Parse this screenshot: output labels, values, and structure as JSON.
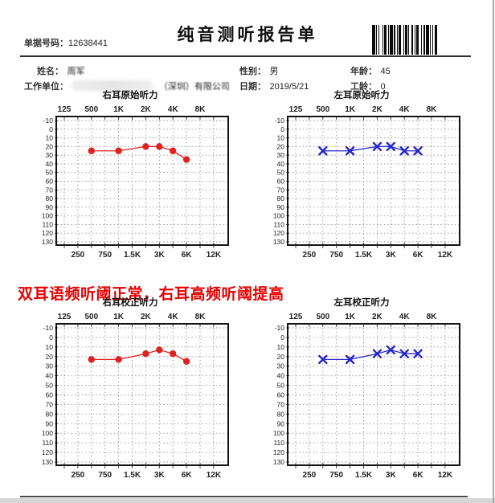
{
  "header": {
    "doc_no_label": "单据号码：",
    "doc_no": "12638441",
    "title": "纯音测听报告单"
  },
  "info": {
    "name_label": "姓名：",
    "name": "周军",
    "gender_label": "性别：",
    "gender": "男",
    "age_label": "年龄：",
    "age": "45",
    "employer_label": "工作单位：",
    "employer_visible": "（深圳）有限公司",
    "date_label": "日期：",
    "date": "2019/5/21",
    "service_years_label": "工龄：",
    "service_years": "0"
  },
  "annotation": "双耳语频听阈正常，右耳高频听阈提高",
  "colors": {
    "right_ear": "#e02121",
    "left_ear": "#2525cc",
    "annotation_red": "#e60000"
  },
  "chart_data": [
    {
      "type": "line",
      "title": "右耳原始听力",
      "marker": "circle",
      "color": "#e02121",
      "frequencies": [
        "500",
        "1K",
        "2K",
        "3K",
        "4K",
        "6K"
      ],
      "values_db": [
        25,
        25,
        20,
        20,
        25,
        35
      ],
      "top_axis_labels": [
        "125",
        "500",
        "1K",
        "2K",
        "4K",
        "8K"
      ],
      "bottom_axis_labels": [
        "250",
        "750",
        "1.5K",
        "3K",
        "6K",
        "12K"
      ],
      "ylim": [
        -10,
        130
      ],
      "ytick_step": 10,
      "y_axis_inverted": true,
      "grid": true
    },
    {
      "type": "line",
      "title": "左耳原始听力",
      "marker": "x",
      "color": "#2525cc",
      "frequencies": [
        "500",
        "1K",
        "2K",
        "3K",
        "4K",
        "6K"
      ],
      "values_db": [
        25,
        25,
        20,
        20,
        25,
        25
      ],
      "top_axis_labels": [
        "125",
        "500",
        "1K",
        "2K",
        "4K",
        "8K"
      ],
      "bottom_axis_labels": [
        "250",
        "750",
        "1.5K",
        "3K",
        "6K",
        "12K"
      ],
      "ylim": [
        -10,
        130
      ],
      "ytick_step": 10,
      "y_axis_inverted": true,
      "grid": true
    },
    {
      "type": "line",
      "title": "右耳校正听力",
      "marker": "circle",
      "color": "#e02121",
      "frequencies": [
        "500",
        "1K",
        "2K",
        "3K",
        "4K",
        "6K"
      ],
      "values_db": [
        23,
        23,
        17,
        13,
        17,
        25
      ],
      "top_axis_labels": [
        "125",
        "500",
        "1K",
        "2K",
        "4K",
        "8K"
      ],
      "bottom_axis_labels": [
        "250",
        "750",
        "1.5K",
        "3K",
        "6K",
        "12K"
      ],
      "ylim": [
        -10,
        130
      ],
      "ytick_step": 10,
      "y_axis_inverted": true,
      "grid": true
    },
    {
      "type": "line",
      "title": "左耳校正听力",
      "marker": "x",
      "color": "#2525cc",
      "frequencies": [
        "500",
        "1K",
        "2K",
        "3K",
        "4K",
        "6K"
      ],
      "values_db": [
        23,
        23,
        17,
        13,
        17,
        17
      ],
      "top_axis_labels": [
        "125",
        "500",
        "1K",
        "2K",
        "4K",
        "8K"
      ],
      "bottom_axis_labels": [
        "250",
        "750",
        "1.5K",
        "3K",
        "6K",
        "12K"
      ],
      "ylim": [
        -10,
        130
      ],
      "ytick_step": 10,
      "y_axis_inverted": true,
      "grid": true
    }
  ]
}
